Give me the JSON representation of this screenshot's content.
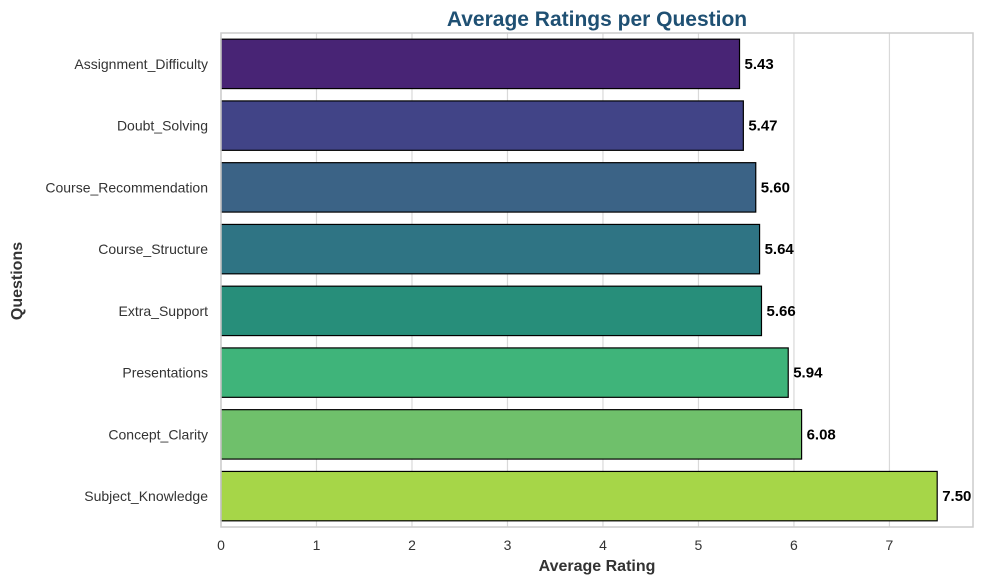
{
  "chart_data": {
    "type": "bar",
    "orientation": "horizontal",
    "title": "Average Ratings per Question",
    "xlabel": "Average Rating",
    "ylabel": "Questions",
    "categories": [
      "Assignment_Difficulty",
      "Doubt_Solving",
      "Course_Recommendation",
      "Course_Structure",
      "Extra_Support",
      "Presentations",
      "Concept_Clarity",
      "Subject_Knowledge"
    ],
    "values": [
      5.43,
      5.47,
      5.6,
      5.64,
      5.66,
      5.94,
      6.08,
      7.5
    ],
    "value_labels": [
      "5.43",
      "5.47",
      "5.60",
      "5.64",
      "5.66",
      "5.94",
      "6.08",
      "7.50"
    ],
    "xticks": [
      "0",
      "1",
      "2",
      "3",
      "4",
      "5",
      "6",
      "7"
    ],
    "xlim": [
      0,
      7.875
    ],
    "grid": "vertical",
    "colors": [
      "#482475",
      "#414487",
      "#355f8d",
      "#2a788e",
      "#21918c",
      "#22a884",
      "#44bf70",
      "#7ad151",
      "#bddf26"
    ],
    "bar_colors": [
      "#482475",
      "#414487",
      "#3b6386",
      "#2f7484",
      "#278e7a",
      "#3fb47a",
      "#6fc06b",
      "#a6d648"
    ],
    "title_color": "#1f5073"
  }
}
